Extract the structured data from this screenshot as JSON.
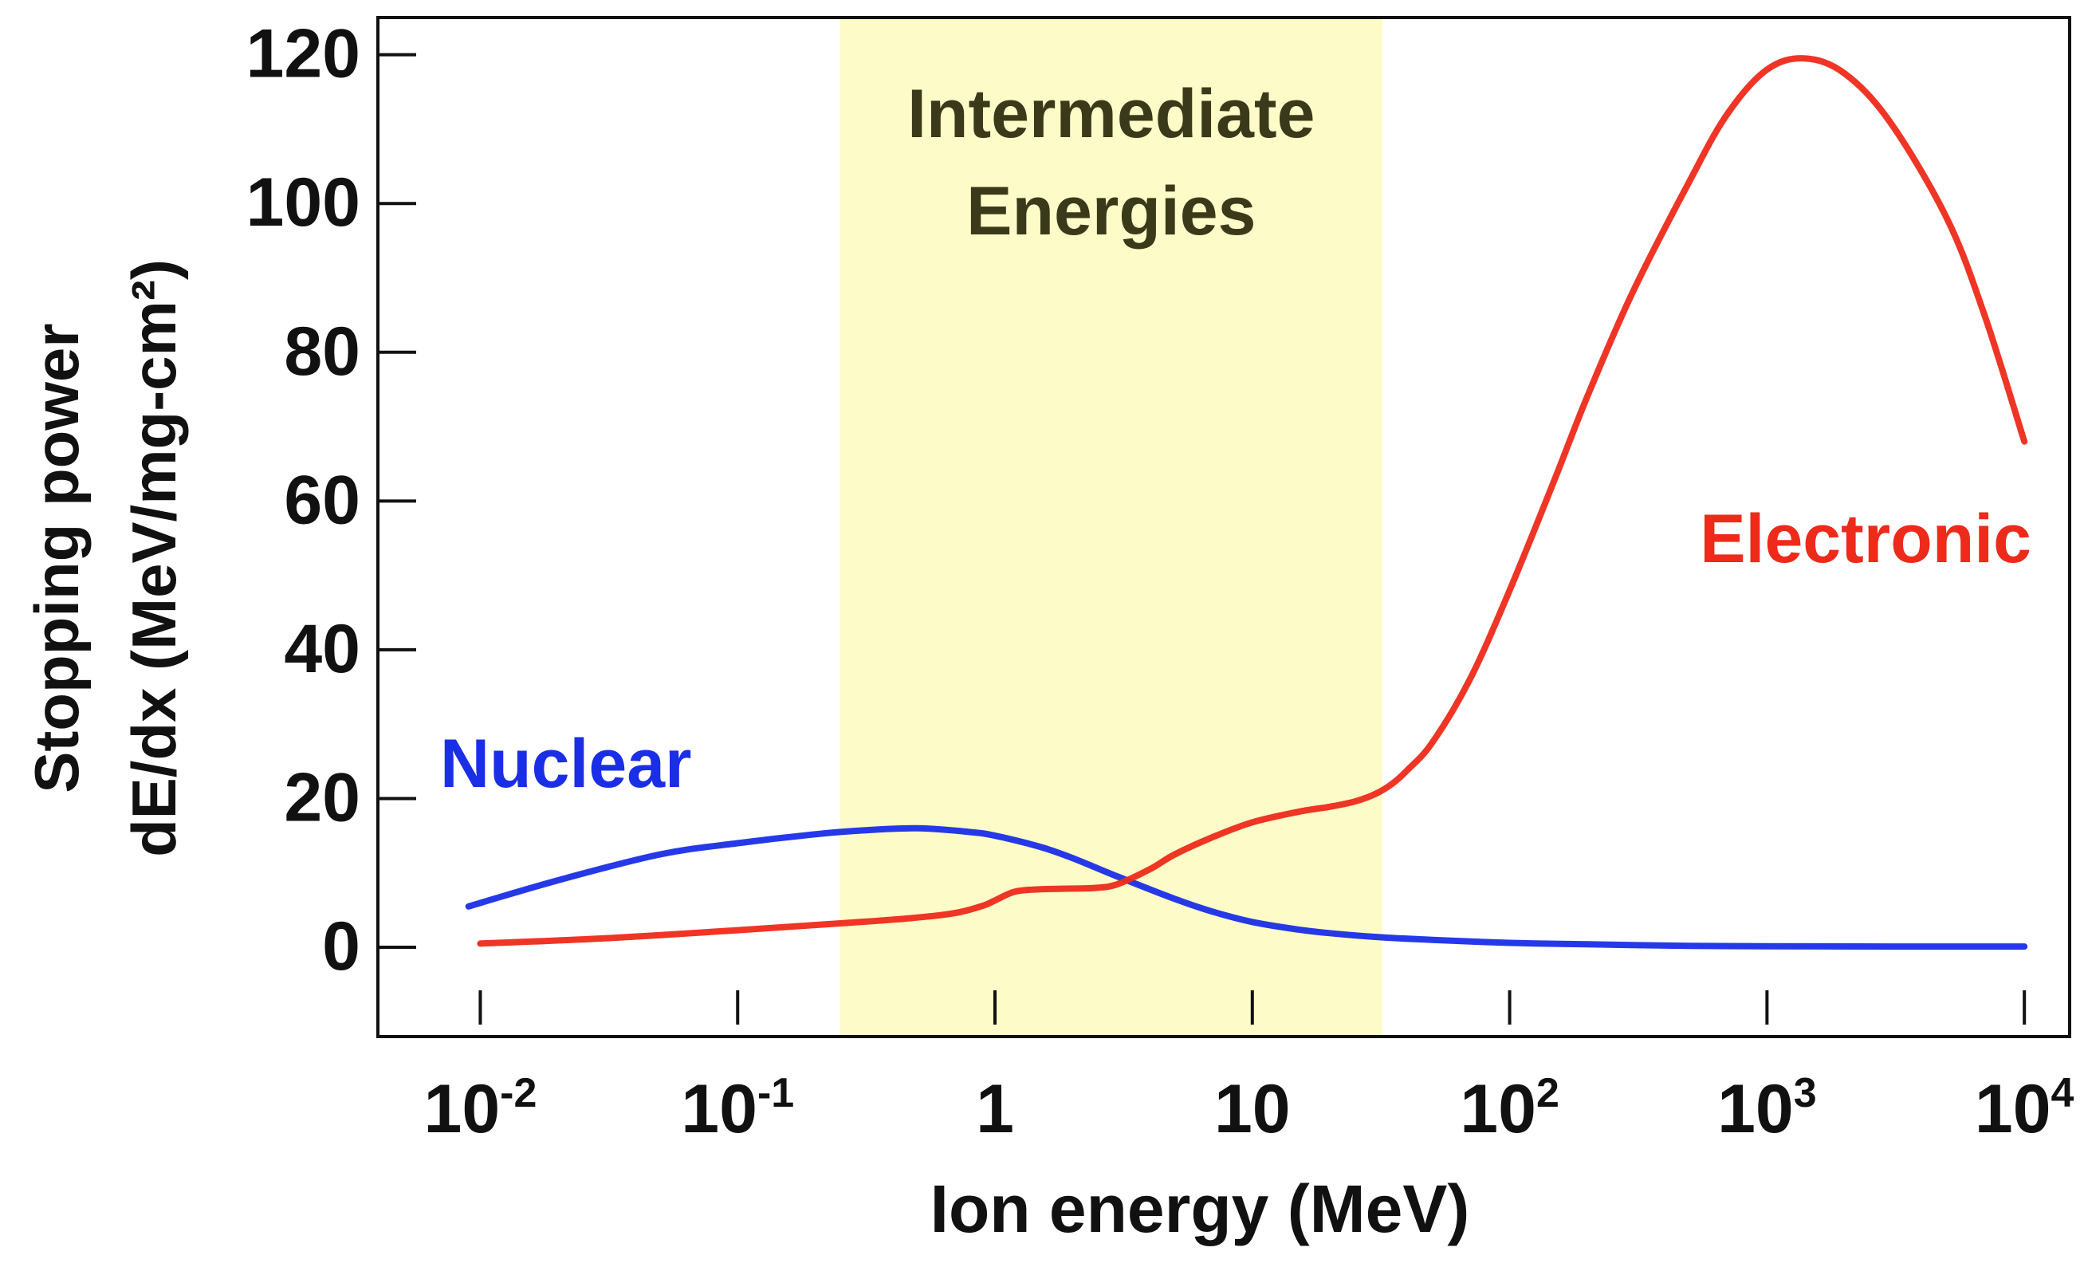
{
  "chart_data": {
    "type": "line",
    "title": "",
    "xlabel": "Ion energy (MeV)",
    "ylabel_line1": "Stopping power",
    "ylabel_line2": "dE/dx (MeV/mg-cm²)",
    "x_scale": "log",
    "xlim": [
      0.004,
      15000
    ],
    "ylim": [
      -12,
      125
    ],
    "grid": false,
    "x_ticks": [
      {
        "value": 0.01,
        "base": "10",
        "exp": "-2"
      },
      {
        "value": 0.1,
        "base": "10",
        "exp": "-1"
      },
      {
        "value": 1,
        "base": "1",
        "exp": ""
      },
      {
        "value": 10,
        "base": "10",
        "exp": ""
      },
      {
        "value": 100,
        "base": "10",
        "exp": "2"
      },
      {
        "value": 1000,
        "base": "10",
        "exp": "3"
      },
      {
        "value": 10000,
        "base": "10",
        "exp": "4"
      }
    ],
    "y_ticks": [
      0,
      20,
      40,
      60,
      80,
      100,
      120
    ],
    "region": {
      "x_start": 0.25,
      "x_end": 32,
      "label_line1": "Intermediate",
      "label_line2": "Energies",
      "color": "#fdfcc8",
      "text_color": "#3a3a1a"
    },
    "series": [
      {
        "name": "Nuclear",
        "color": "#1a2ee8",
        "label_x": 0.009,
        "label_y": 25,
        "x": [
          0.009,
          0.02,
          0.05,
          0.1,
          0.2,
          0.3,
          0.5,
          0.8,
          1,
          1.5,
          2,
          3,
          5,
          7,
          10,
          15,
          20,
          30,
          50,
          100,
          200,
          500,
          1000,
          3000,
          10000
        ],
        "y": [
          5.5,
          9,
          12.5,
          14,
          15.2,
          15.7,
          16,
          15.5,
          15,
          13.5,
          12,
          9.5,
          6.5,
          4.8,
          3.4,
          2.4,
          1.9,
          1.4,
          1.0,
          0.6,
          0.4,
          0.2,
          0.15,
          0.1,
          0.1
        ]
      },
      {
        "name": "Electronic",
        "color": "#ee2a1a",
        "label_x": 2200,
        "label_y": 55,
        "x": [
          0.01,
          0.03,
          0.1,
          0.2,
          0.3,
          0.5,
          0.7,
          0.9,
          1,
          1.2,
          1.5,
          2,
          2.5,
          3,
          4,
          5,
          7,
          10,
          15,
          20,
          25,
          30,
          35,
          40,
          50,
          70,
          100,
          150,
          200,
          300,
          500,
          700,
          1000,
          1400,
          2000,
          3000,
          5000,
          7000,
          10000
        ],
        "y": [
          0.5,
          1.2,
          2.3,
          3,
          3.4,
          4,
          4.6,
          5.6,
          6.3,
          7.5,
          7.8,
          7.9,
          8,
          8.5,
          10.5,
          12.5,
          14.8,
          16.8,
          18.2,
          18.9,
          19.6,
          20.6,
          22,
          23.8,
          27.5,
          36,
          48,
          63,
          74,
          88,
          103,
          112,
          118,
          119.5,
          117.5,
          111,
          98,
          85,
          68
        ]
      }
    ]
  }
}
